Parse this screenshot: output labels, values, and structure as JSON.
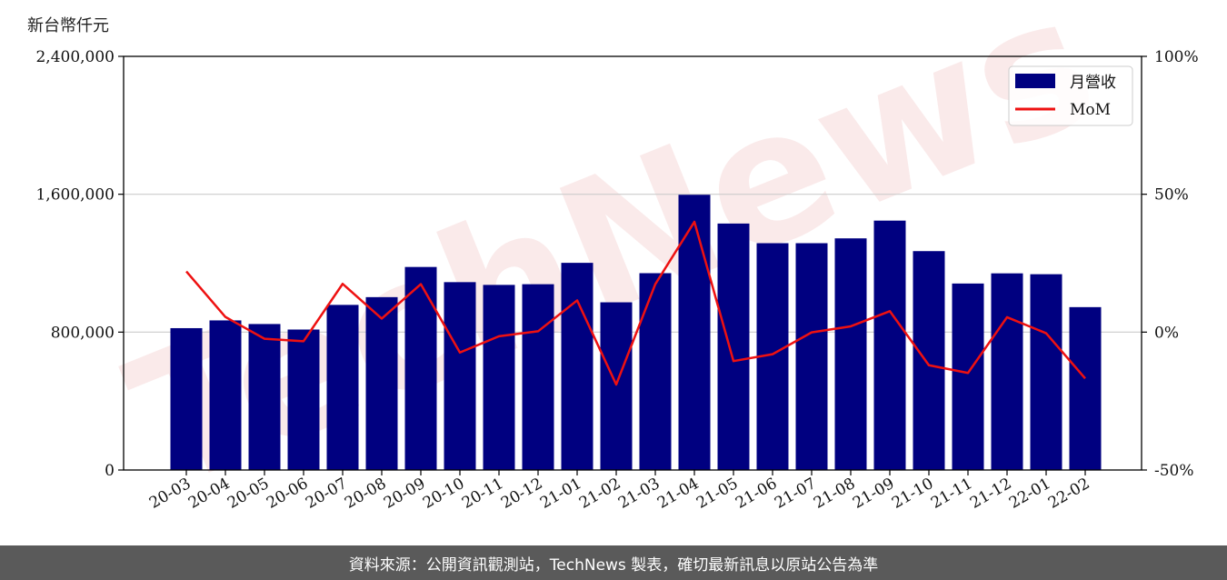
{
  "unit_label": "新台幣仟元",
  "footer_text": "資料來源：公開資訊觀測站，TechNews 製表，確切最新訊息以原站公告為準",
  "watermark": "TechNews",
  "colors": {
    "bar": "#000080",
    "line": "#ee1111",
    "grid": "#cccccc",
    "footer_bg": "#5a5a5a"
  },
  "chart_data": {
    "type": "bar+line",
    "categories": [
      "20-03",
      "20-04",
      "20-05",
      "20-06",
      "20-07",
      "20-08",
      "20-09",
      "20-10",
      "20-11",
      "20-12",
      "21-01",
      "21-02",
      "21-03",
      "21-04",
      "21-05",
      "21-06",
      "21-07",
      "21-08",
      "21-09",
      "21-10",
      "21-11",
      "21-12",
      "22-01",
      "22-02"
    ],
    "series": [
      {
        "name": "月營收",
        "type": "bar",
        "axis": "left",
        "values": [
          823000,
          868000,
          847000,
          815000,
          958000,
          1003000,
          1178000,
          1090000,
          1074000,
          1078000,
          1202000,
          973000,
          1142000,
          1597000,
          1430000,
          1316000,
          1316000,
          1344000,
          1447000,
          1270000,
          1082000,
          1141000,
          1136000,
          945000
        ]
      },
      {
        "name": "MoM",
        "type": "line",
        "axis": "right",
        "values": [
          22,
          5.5,
          -2.4,
          -3.3,
          17.5,
          4.9,
          17.4,
          -7.4,
          -1.5,
          0.3,
          11.5,
          -19,
          17.4,
          40,
          -10.5,
          -8,
          -0.1,
          2.1,
          7.6,
          -12,
          -14.8,
          5.4,
          -0.4,
          -16.8
        ]
      }
    ],
    "y_left": {
      "ylim": [
        0,
        2400000
      ],
      "ticks": [
        0,
        800000,
        1600000,
        2400000
      ],
      "tick_labels": [
        "0",
        "800,000",
        "1,600,000",
        "2,400,000"
      ]
    },
    "y_right": {
      "ylim": [
        -50,
        100
      ],
      "ticks": [
        -50,
        0,
        50,
        100
      ],
      "tick_labels": [
        "-50%",
        "0%",
        "50%",
        "100%"
      ]
    },
    "grid": "horizontal",
    "legend": {
      "position": "top-right",
      "entries": [
        "月營收",
        "MoM"
      ]
    }
  }
}
